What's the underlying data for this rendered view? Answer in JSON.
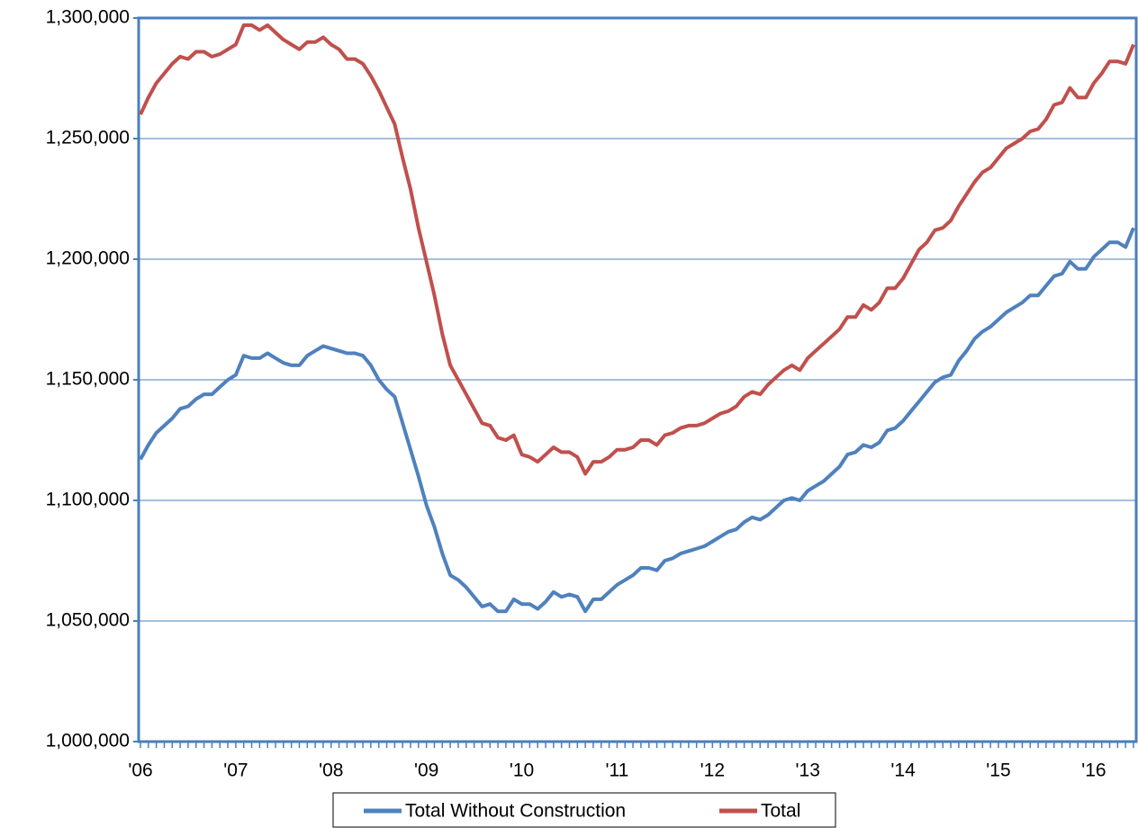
{
  "chart_data": {
    "type": "line",
    "categories": [
      "'06",
      null,
      null,
      null,
      null,
      null,
      null,
      null,
      null,
      null,
      null,
      null,
      "'07",
      null,
      null,
      null,
      null,
      null,
      null,
      null,
      null,
      null,
      null,
      null,
      "'08",
      null,
      null,
      null,
      null,
      null,
      null,
      null,
      null,
      null,
      null,
      null,
      "'09",
      null,
      null,
      null,
      null,
      null,
      null,
      null,
      null,
      null,
      null,
      null,
      "'10",
      null,
      null,
      null,
      null,
      null,
      null,
      null,
      null,
      null,
      null,
      null,
      "'11",
      null,
      null,
      null,
      null,
      null,
      null,
      null,
      null,
      null,
      null,
      null,
      "'12",
      null,
      null,
      null,
      null,
      null,
      null,
      null,
      null,
      null,
      null,
      null,
      "'13",
      null,
      null,
      null,
      null,
      null,
      null,
      null,
      null,
      null,
      null,
      null,
      "'14",
      null,
      null,
      null,
      null,
      null,
      null,
      null,
      null,
      null,
      null,
      null,
      "'15",
      null,
      null,
      null,
      null,
      null,
      null,
      null,
      null,
      null,
      null,
      null,
      "'16",
      null,
      null,
      null,
      null,
      null
    ],
    "series": [
      {
        "name": "Total Without Construction",
        "color": "#4f81bd",
        "values": [
          1117000,
          1123000,
          1128000,
          1131000,
          1134000,
          1138000,
          1139000,
          1142000,
          1144000,
          1144000,
          1147000,
          1150000,
          1152000,
          1160000,
          1159000,
          1159000,
          1161000,
          1159000,
          1157000,
          1156000,
          1156000,
          1160000,
          1162000,
          1164000,
          1163000,
          1162000,
          1161000,
          1161000,
          1160000,
          1156000,
          1150000,
          1146000,
          1143000,
          1132000,
          1121000,
          1110000,
          1098000,
          1089000,
          1078000,
          1069000,
          1067000,
          1064000,
          1060000,
          1056000,
          1057000,
          1054000,
          1054000,
          1059000,
          1057000,
          1057000,
          1055000,
          1058000,
          1062000,
          1060000,
          1061000,
          1060000,
          1054000,
          1059000,
          1059000,
          1062000,
          1065000,
          1067000,
          1069000,
          1072000,
          1072000,
          1071000,
          1075000,
          1076000,
          1078000,
          1079000,
          1080000,
          1081000,
          1083000,
          1085000,
          1087000,
          1088000,
          1091000,
          1093000,
          1092000,
          1094000,
          1097000,
          1100000,
          1101000,
          1100000,
          1104000,
          1106000,
          1108000,
          1111000,
          1114000,
          1119000,
          1120000,
          1123000,
          1122000,
          1124000,
          1129000,
          1130000,
          1133000,
          1137000,
          1141000,
          1145000,
          1149000,
          1151000,
          1152000,
          1158000,
          1162000,
          1167000,
          1170000,
          1172000,
          1175000,
          1178000,
          1180000,
          1182000,
          1185000,
          1185000,
          1189000,
          1193000,
          1194000,
          1199000,
          1196000,
          1196000,
          1201000,
          1204000,
          1207000,
          1207000,
          1205000,
          1213000
        ]
      },
      {
        "name": "Total",
        "color": "#c0504d",
        "values": [
          1260000,
          1267000,
          1273000,
          1277000,
          1281000,
          1284000,
          1283000,
          1286000,
          1286000,
          1284000,
          1285000,
          1287000,
          1289000,
          1297000,
          1297000,
          1295000,
          1297000,
          1294000,
          1291000,
          1289000,
          1287000,
          1290000,
          1290000,
          1292000,
          1289000,
          1287000,
          1283000,
          1283000,
          1281000,
          1276000,
          1270000,
          1263000,
          1256000,
          1242000,
          1229000,
          1213000,
          1199000,
          1185000,
          1169000,
          1156000,
          1150000,
          1144000,
          1138000,
          1132000,
          1131000,
          1126000,
          1125000,
          1127000,
          1119000,
          1118000,
          1116000,
          1119000,
          1122000,
          1120000,
          1120000,
          1118000,
          1111000,
          1116000,
          1116000,
          1118000,
          1121000,
          1121000,
          1122000,
          1125000,
          1125000,
          1123000,
          1127000,
          1128000,
          1130000,
          1131000,
          1131000,
          1132000,
          1134000,
          1136000,
          1137000,
          1139000,
          1143000,
          1145000,
          1144000,
          1148000,
          1151000,
          1154000,
          1156000,
          1154000,
          1159000,
          1162000,
          1165000,
          1168000,
          1171000,
          1176000,
          1176000,
          1181000,
          1179000,
          1182000,
          1188000,
          1188000,
          1192000,
          1198000,
          1204000,
          1207000,
          1212000,
          1213000,
          1216000,
          1222000,
          1227000,
          1232000,
          1236000,
          1238000,
          1242000,
          1246000,
          1248000,
          1250000,
          1253000,
          1254000,
          1258000,
          1264000,
          1265000,
          1271000,
          1267000,
          1267000,
          1273000,
          1277000,
          1282000,
          1282000,
          1281000,
          1289000
        ]
      }
    ],
    "ylim": [
      1000000,
      1300000
    ],
    "yticks": [
      {
        "value": 1000000,
        "label": "1,000,000"
      },
      {
        "value": 1050000,
        "label": "1,050,000"
      },
      {
        "value": 1100000,
        "label": "1,100,000"
      },
      {
        "value": 1150000,
        "label": "1,150,000"
      },
      {
        "value": 1200000,
        "label": "1,200,000"
      },
      {
        "value": 1250000,
        "label": "1,250,000"
      },
      {
        "value": 1300000,
        "label": "1,300,000"
      }
    ],
    "grid": true,
    "legend": "bottom"
  }
}
